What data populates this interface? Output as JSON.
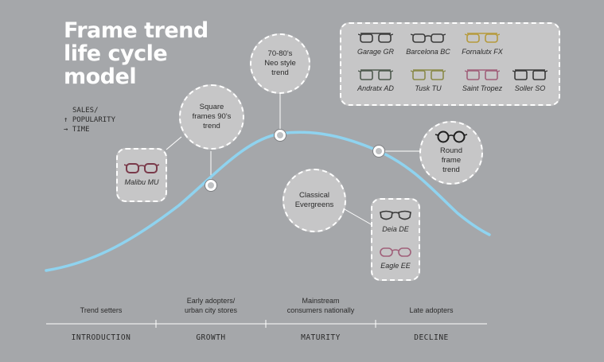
{
  "title": {
    "line1": "Frame trend",
    "line2": "life cycle",
    "line3": "model"
  },
  "axis_key": {
    "y_line1": "SALES/",
    "y_line2": "↑ POPULARITY",
    "x_line": "→ TIME"
  },
  "colors": {
    "background": "#a5a7aa",
    "curve": "#8fd3ef",
    "bubble_fill": "#c6c6c7",
    "dashed_border": "#ffffff",
    "frame_plum": "#7a3a4a",
    "frame_dark": "#3a3a3a",
    "frame_gold": "#b59a3c",
    "frame_olive": "#8a8a4a",
    "frame_rose": "#a0607a"
  },
  "callouts": {
    "square_90s": {
      "line1": "Square",
      "line2": "frames 90's",
      "line3": "trend"
    },
    "neo_style": {
      "line1": "70-80's",
      "line2": "Neo style",
      "line3": "trend"
    },
    "round_frame": {
      "line1": "Round",
      "line2": "frame",
      "line3": "trend"
    },
    "classical": {
      "line1": "Classical",
      "line2": "Evergreens"
    }
  },
  "frames": {
    "malibu": "Malibu MU",
    "garage": "Garage GR",
    "barcelona": "Barcelona BC",
    "fornalutx": "Fornalutx FX",
    "andratx": "Andratx AD",
    "tusk": "Tusk TU",
    "saint_tropez": "Saint Tropez",
    "soller": "Soller SO",
    "deia": "Deia DE",
    "eagle": "Eagle EE"
  },
  "stages": [
    {
      "name": "INTRODUCTION",
      "line1": "Trend setters",
      "line2": ""
    },
    {
      "name": "GROWTH",
      "line1": "Early adopters/",
      "line2": "urban city stores"
    },
    {
      "name": "MATURITY",
      "line1": "Mainstream",
      "line2": "consumers nationally"
    },
    {
      "name": "DECLINE",
      "line1": "Late adopters",
      "line2": ""
    }
  ]
}
